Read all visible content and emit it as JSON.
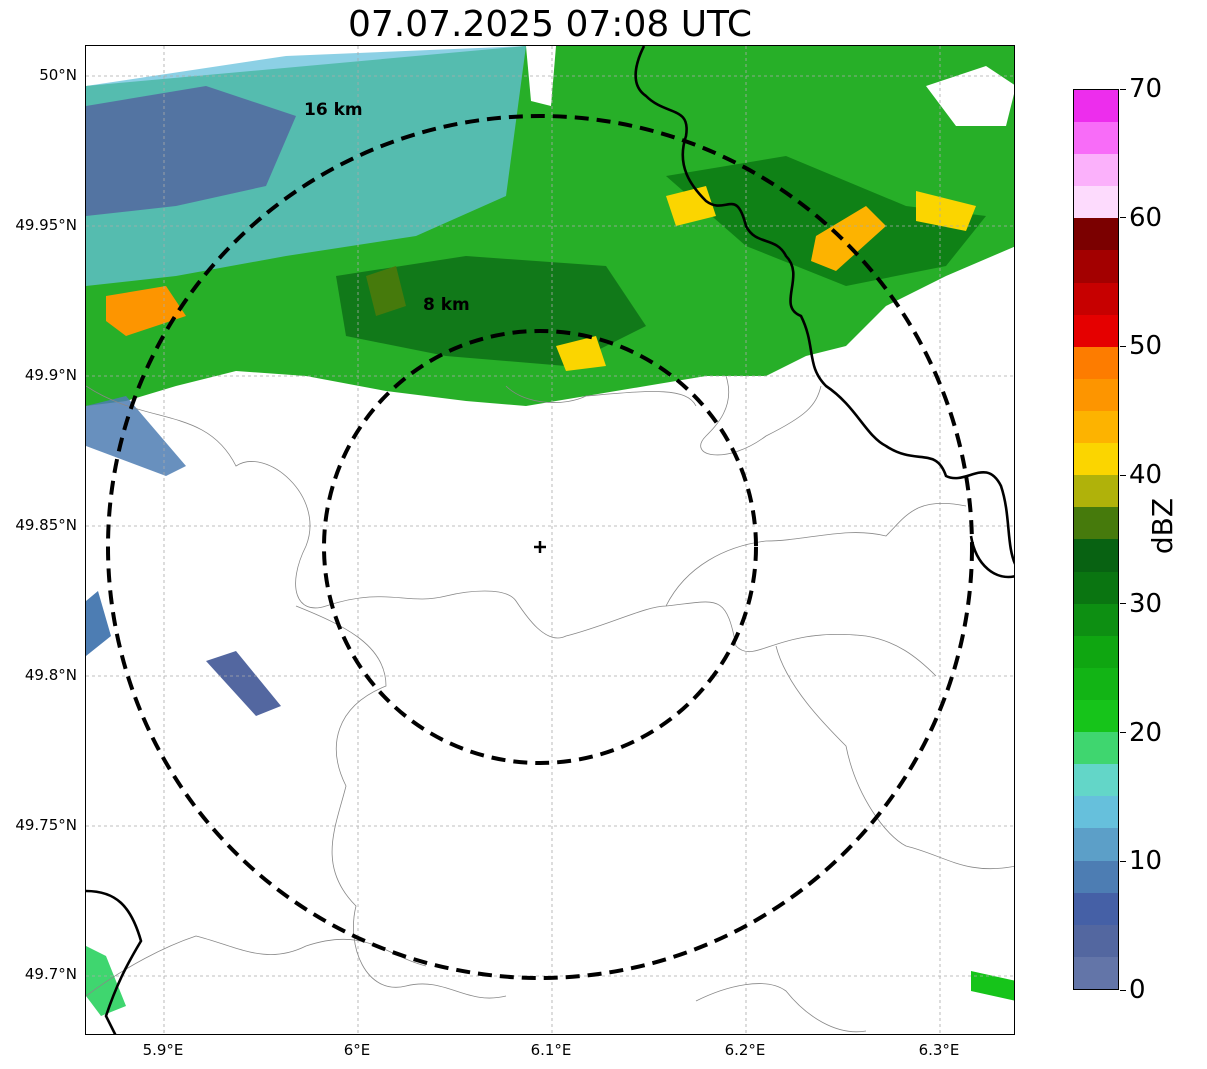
{
  "title": "07.07.2025 07:08 UTC",
  "map": {
    "lat_ticks": [
      "50°N",
      "49.95°N",
      "49.9°N",
      "49.85°N",
      "49.8°N",
      "49.75°N",
      "49.7°N"
    ],
    "lon_ticks": [
      "5.9°E",
      "6°E",
      "6.1°E",
      "6.2°E",
      "6.3°E"
    ],
    "radar_site": "cross-marker",
    "range_rings": [
      {
        "label": "8 km",
        "radius_km": 8
      },
      {
        "label": "16 km",
        "radius_km": 16
      }
    ],
    "echo_region": "precipitation band across northern part of the map, strongest (40–47 dBZ) near the north-east border and west edge"
  },
  "colorbar": {
    "unit": "dBZ",
    "min": 0,
    "max": 70,
    "ticks": [
      "0",
      "10",
      "20",
      "30",
      "40",
      "50",
      "60",
      "70"
    ],
    "colors": [
      "#6375a8",
      "#5367a0",
      "#4560a6",
      "#4d7db3",
      "#5c9fc8",
      "#66c0dc",
      "#63d6c8",
      "#3fd66f",
      "#16c41a",
      "#12b415",
      "#0fa611",
      "#0d8f12",
      "#0a7511",
      "#086212",
      "#467a0c",
      "#b0b20a",
      "#fbd500",
      "#fdb300",
      "#fd9500",
      "#fd7c00",
      "#e50000",
      "#c70000",
      "#a30000",
      "#7b0000",
      "#fddbfd",
      "#fbb1fb",
      "#f86cf8",
      "#ed2ded"
    ]
  }
}
